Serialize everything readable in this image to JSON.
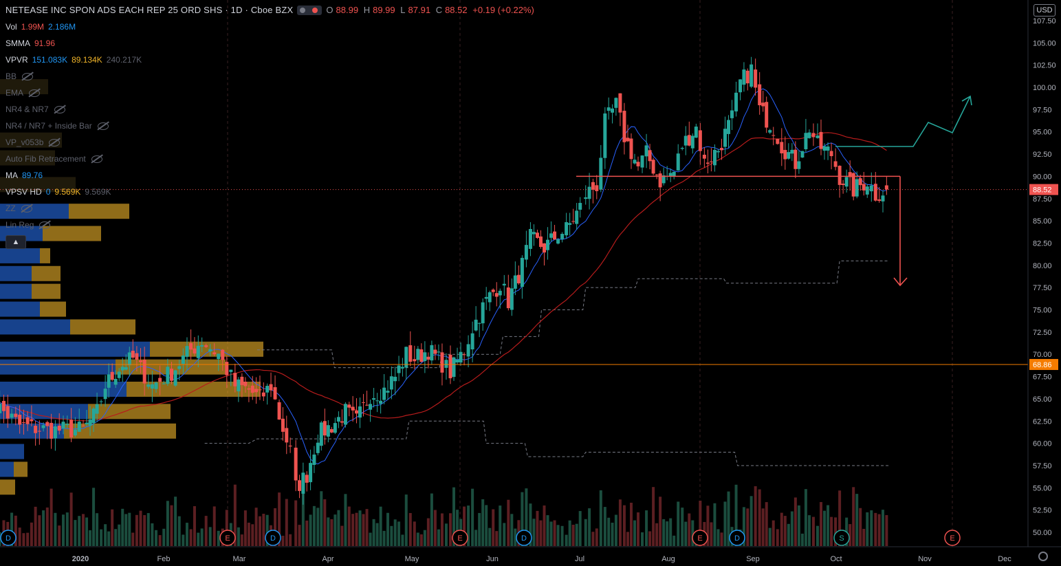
{
  "header": {
    "title": "NETEASE INC SPON ADS EACH REP 25 ORD SHS · 1D · Cboe BZX",
    "o_label": "O",
    "o": "88.99",
    "h_label": "H",
    "h": "89.99",
    "l_label": "L",
    "l": "87.91",
    "c_label": "C",
    "c": "88.52",
    "change": "+0.19 (+0.22%)"
  },
  "currency": "USD",
  "indicators": [
    {
      "name": "Vol",
      "v1": "1.99M",
      "v2": "2.186M",
      "c1": "#ef5350",
      "c2": "#2196f3"
    },
    {
      "name": "SMMA",
      "v1": "91.96",
      "c1": "#ef5350"
    },
    {
      "name": "VPVR",
      "v1": "151.083K",
      "v2": "89.134K",
      "v3": "240.217K",
      "c1": "#2196f3",
      "c2": "#f0b429",
      "c3": "#5d606b"
    },
    {
      "name": "BB",
      "hidden": true
    },
    {
      "name": "EMA",
      "hidden": true
    },
    {
      "name": "NR4 & NR7",
      "hidden": true
    },
    {
      "name": "NR4 / NR7 + Inside Bar",
      "hidden": true
    },
    {
      "name": "VP_v053b",
      "hidden": true
    },
    {
      "name": "Auto Fib Retracement",
      "hidden": true
    },
    {
      "name": "MA",
      "v1": "89.76",
      "c1": "#2196f3"
    },
    {
      "name": "VPSV HD",
      "v1": "0",
      "v2": "9.569K",
      "v3": "9.569K",
      "c1": "#2196f3",
      "c2": "#f0b429",
      "c3": "#5d606b"
    },
    {
      "name": "ZZ",
      "hidden": true
    },
    {
      "name": "Lin Reg",
      "hidden": true
    }
  ],
  "chart_data": {
    "type": "candlestick",
    "x_ticks": [
      "2020",
      "Feb",
      "Mar",
      "Apr",
      "May",
      "Jun",
      "Jul",
      "Aug",
      "Sep",
      "Oct",
      "Nov",
      "Dec"
    ],
    "y_ticks": [
      "107.50",
      "105.00",
      "102.50",
      "100.00",
      "97.50",
      "95.00",
      "92.50",
      "90.00",
      "87.50",
      "85.00",
      "82.50",
      "80.00",
      "77.50",
      "75.00",
      "72.50",
      "70.00",
      "67.50",
      "65.00",
      "62.50",
      "60.00",
      "57.50",
      "55.00",
      "52.50",
      "50.00"
    ],
    "ylim": [
      48.8,
      109
    ],
    "price_labels": [
      {
        "text": "88.52",
        "value": 88.52,
        "color": "#ef5350"
      },
      {
        "text": "68.86",
        "value": 68.86,
        "color": "#f57c00"
      }
    ],
    "horizontal_lines": [
      {
        "value": 68.86,
        "color": "#f57c00"
      },
      {
        "value": 90.0,
        "color": "#ef5350"
      }
    ],
    "event_markers": [
      {
        "label": "D",
        "x_date": "2019-12-03",
        "color": "#2196f3"
      },
      {
        "label": "E",
        "x_date": "2020-02-26",
        "color": "#ef5350"
      },
      {
        "label": "D",
        "x_date": "2020-03-12",
        "color": "#2196f3"
      },
      {
        "label": "E",
        "x_date": "2020-05-19",
        "color": "#ef5350"
      },
      {
        "label": "D",
        "x_date": "2020-06-01",
        "color": "#2196f3"
      },
      {
        "label": "E",
        "x_date": "2020-08-20",
        "color": "#ef5350"
      },
      {
        "label": "D",
        "x_date": "2020-08-27",
        "color": "#2196f3"
      },
      {
        "label": "S",
        "x_date": "2020-10-02",
        "color": "#26a69a"
      },
      {
        "label": "E",
        "x_date": "2020-11-19",
        "color": "#ef5350"
      }
    ],
    "closes": [
      {
        "d": "2019-11-27",
        "c": 65.5
      },
      {
        "d": "2019-12-10",
        "c": 62.0
      },
      {
        "d": "2019-12-20",
        "c": 61.5
      },
      {
        "d": "2020-01-02",
        "c": 61.5
      },
      {
        "d": "2020-01-07",
        "c": 63.5
      },
      {
        "d": "2020-01-10",
        "c": 66.5
      },
      {
        "d": "2020-01-15",
        "c": 68.5
      },
      {
        "d": "2020-01-20",
        "c": 69.5
      },
      {
        "d": "2020-01-27",
        "c": 66.5
      },
      {
        "d": "2020-02-03",
        "c": 68.0
      },
      {
        "d": "2020-02-10",
        "c": 70.5
      },
      {
        "d": "2020-02-14",
        "c": 71.5
      },
      {
        "d": "2020-02-20",
        "c": 70.0
      },
      {
        "d": "2020-02-26",
        "c": 66.5
      },
      {
        "d": "2020-03-02",
        "c": 66.0
      },
      {
        "d": "2020-03-06",
        "c": 65.0
      },
      {
        "d": "2020-03-10",
        "c": 66.5
      },
      {
        "d": "2020-03-13",
        "c": 63.0
      },
      {
        "d": "2020-03-17",
        "c": 59.0
      },
      {
        "d": "2020-03-19",
        "c": 55.0
      },
      {
        "d": "2020-03-23",
        "c": 56.5
      },
      {
        "d": "2020-03-27",
        "c": 61.0
      },
      {
        "d": "2020-04-01",
        "c": 62.0
      },
      {
        "d": "2020-04-06",
        "c": 63.5
      },
      {
        "d": "2020-04-10",
        "c": 62.5
      },
      {
        "d": "2020-04-15",
        "c": 65.5
      },
      {
        "d": "2020-04-20",
        "c": 66.0
      },
      {
        "d": "2020-04-24",
        "c": 67.5
      },
      {
        "d": "2020-04-28",
        "c": 70.0
      },
      {
        "d": "2020-05-01",
        "c": 69.5
      },
      {
        "d": "2020-05-06",
        "c": 70.5
      },
      {
        "d": "2020-05-11",
        "c": 69.0
      },
      {
        "d": "2020-05-14",
        "c": 68.0
      },
      {
        "d": "2020-05-19",
        "c": 70.5
      },
      {
        "d": "2020-05-22",
        "c": 73.0
      },
      {
        "d": "2020-05-27",
        "c": 76.0
      },
      {
        "d": "2020-06-01",
        "c": 78.0
      },
      {
        "d": "2020-06-04",
        "c": 76.0
      },
      {
        "d": "2020-06-09",
        "c": 80.0
      },
      {
        "d": "2020-06-12",
        "c": 83.0
      },
      {
        "d": "2020-06-17",
        "c": 82.0
      },
      {
        "d": "2020-06-22",
        "c": 83.5
      },
      {
        "d": "2020-06-25",
        "c": 84.0
      },
      {
        "d": "2020-06-30",
        "c": 86.5
      },
      {
        "d": "2020-07-02",
        "c": 88.0
      },
      {
        "d": "2020-07-06",
        "c": 89.0
      },
      {
        "d": "2020-07-09",
        "c": 96.0
      },
      {
        "d": "2020-07-13",
        "c": 98.0
      },
      {
        "d": "2020-07-16",
        "c": 94.5
      },
      {
        "d": "2020-07-21",
        "c": 91.0
      },
      {
        "d": "2020-07-24",
        "c": 92.5
      },
      {
        "d": "2020-07-29",
        "c": 89.5
      },
      {
        "d": "2020-08-03",
        "c": 90.5
      },
      {
        "d": "2020-08-06",
        "c": 93.5
      },
      {
        "d": "2020-08-11",
        "c": 95.5
      },
      {
        "d": "2020-08-14",
        "c": 91.5
      },
      {
        "d": "2020-08-19",
        "c": 93.0
      },
      {
        "d": "2020-08-24",
        "c": 96.5
      },
      {
        "d": "2020-08-27",
        "c": 100.5
      },
      {
        "d": "2020-08-31",
        "c": 102.0
      },
      {
        "d": "2020-09-03",
        "c": 97.5
      },
      {
        "d": "2020-09-08",
        "c": 95.5
      },
      {
        "d": "2020-09-11",
        "c": 93.5
      },
      {
        "d": "2020-09-16",
        "c": 91.5
      },
      {
        "d": "2020-09-21",
        "c": 95.5
      },
      {
        "d": "2020-09-24",
        "c": 93.5
      },
      {
        "d": "2020-09-29",
        "c": 92.5
      },
      {
        "d": "2020-10-02",
        "c": 90.0
      },
      {
        "d": "2020-10-07",
        "c": 88.5
      },
      {
        "d": "2020-10-12",
        "c": 89.5
      },
      {
        "d": "2020-10-15",
        "c": 88.0
      },
      {
        "d": "2020-10-19",
        "c": 88.52
      }
    ]
  }
}
